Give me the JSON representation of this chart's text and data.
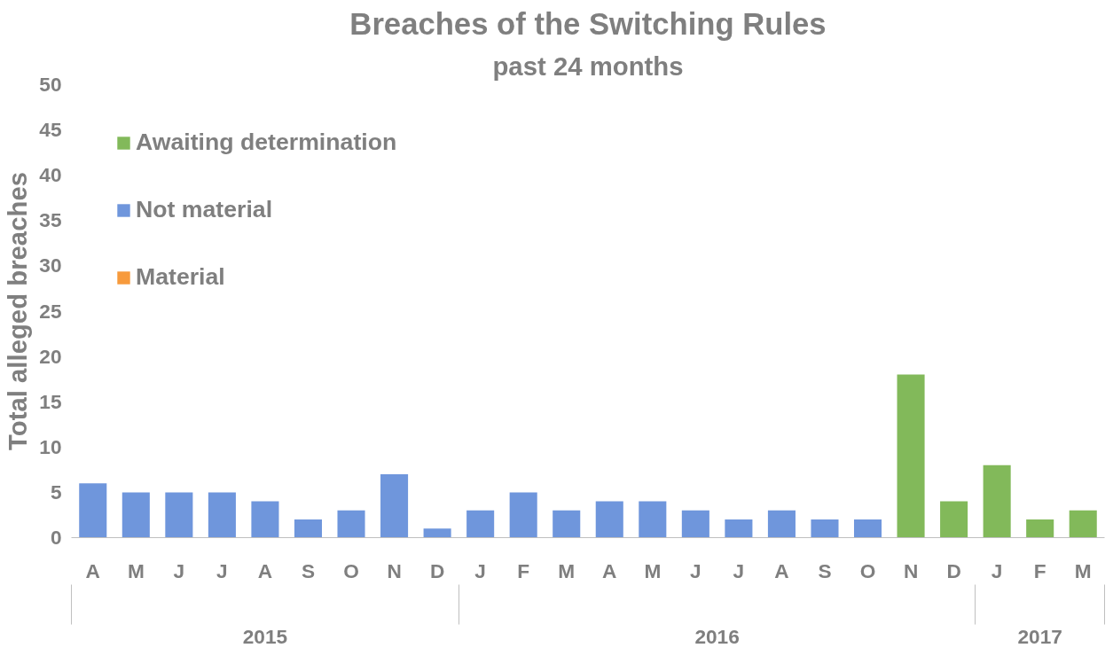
{
  "chart_data": {
    "type": "bar",
    "title": "Breaches of the Switching Rules",
    "subtitle": "past 24 months",
    "ylabel": "Total alleged breaches",
    "stacked": true,
    "categories": [
      "A",
      "M",
      "J",
      "J",
      "A",
      "S",
      "O",
      "N",
      "D",
      "J",
      "F",
      "M",
      "A",
      "M",
      "J",
      "J",
      "A",
      "S",
      "O",
      "N",
      "D",
      "J",
      "F",
      "M"
    ],
    "annotations": [
      "2015",
      "2016",
      "2017"
    ],
    "series": [
      {
        "name": "Material",
        "color": "#f79a3c",
        "values": [
          0,
          0,
          0,
          0,
          0,
          0,
          0,
          0,
          0,
          0,
          0,
          0,
          0,
          0,
          0,
          0,
          0,
          0,
          0,
          0,
          0,
          0,
          0,
          0
        ]
      },
      {
        "name": "Not material",
        "color": "#6f96dc",
        "values": [
          6,
          5,
          5,
          5,
          4,
          2,
          3,
          7,
          1,
          3,
          5,
          3,
          4,
          4,
          3,
          2,
          3,
          2,
          2,
          0,
          0,
          0,
          0,
          0
        ]
      },
      {
        "name": "Awaiting determination",
        "color": "#82b95a",
        "values": [
          0,
          0,
          0,
          0,
          0,
          0,
          0,
          0,
          0,
          0,
          0,
          0,
          0,
          0,
          0,
          0,
          0,
          0,
          0,
          18,
          4,
          8,
          2,
          3
        ]
      }
    ],
    "ylim": [
      0,
      50
    ],
    "yticks": [
      0,
      5,
      10,
      15,
      20,
      25,
      30,
      35,
      40,
      45,
      50
    ],
    "grid": false,
    "legend": "top left"
  }
}
